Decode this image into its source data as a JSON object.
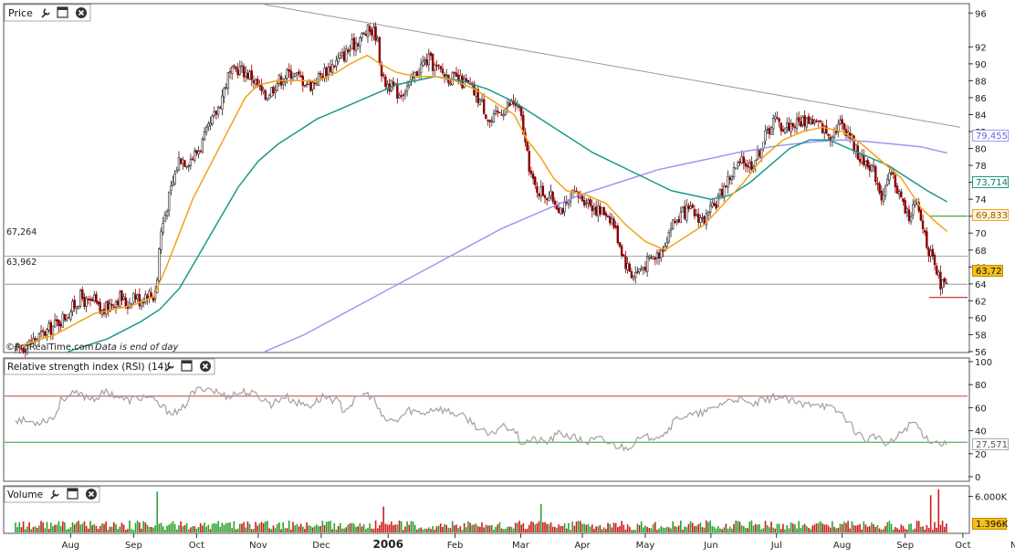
{
  "colors": {
    "up": "#222222",
    "down": "#8b0000",
    "ma_fast": "#f5a21b",
    "ma_mid": "#1a9a8a",
    "ma_slow": "#9c98f0",
    "trend": "#999999",
    "rsi": "#a0a0a0",
    "rsi_upper": "#c04040",
    "rsi_lower": "#2ea02e",
    "vol_up": "#2ea02e",
    "vol_down": "#cc1e1e",
    "level": "#888888",
    "pill_price_bg": "#f6c01a",
    "pill_ma_fast_bg": "#fff4dc"
  },
  "panels": {
    "price": {
      "label": "Price",
      "icons": [
        "wrench-icon",
        "window-icon",
        "close-icon"
      ]
    },
    "rsi": {
      "label": "Relative strength index (RSI) (14)",
      "icons": [
        "wrench-icon",
        "window-icon",
        "close-icon"
      ]
    },
    "volume": {
      "label": "Volume",
      "icons": [
        "wrench-icon",
        "window-icon",
        "close-icon"
      ]
    }
  },
  "watermark": {
    "brand": "©ProRealTime.com",
    "note": "Data is end of day"
  },
  "price_axis": {
    "ticks": [
      "96",
      "92",
      "90",
      "88",
      "86",
      "84",
      "82",
      "80",
      "78",
      "76",
      "74",
      "72",
      "70",
      "68",
      "66",
      "64",
      "62",
      "60",
      "58",
      "56"
    ]
  },
  "rsi_axis": {
    "ticks": [
      "100",
      "80",
      "60",
      "40",
      "20",
      "0"
    ]
  },
  "volume_axis": {
    "ticks": [
      "6.000K"
    ]
  },
  "levels": {
    "left_labels": [
      "67,264",
      "63,962"
    ]
  },
  "pills": {
    "ma_slow": "79,455",
    "ma_mid": "73,714",
    "ma_fast": "69,833",
    "price": "63,72",
    "rsi": "27,571",
    "volume": "1.396K"
  },
  "x_axis": {
    "labels": [
      "Aug",
      "Sep",
      "Oct",
      "Nov",
      "Dec",
      "2006",
      "Feb",
      "Mar",
      "Apr",
      "May",
      "Jun",
      "Jul",
      "Aug",
      "Sep",
      "Oct",
      "Nov"
    ],
    "bold": [
      "2006"
    ]
  },
  "chart_data": {
    "type": "line",
    "price": {
      "ylim": [
        56,
        97
      ],
      "close_path": [
        [
          0,
          56.0
        ],
        [
          10,
          57.0
        ],
        [
          25,
          58.5
        ],
        [
          40,
          60.5
        ],
        [
          50,
          62.5
        ],
        [
          55,
          61.5
        ],
        [
          60,
          62.0
        ],
        [
          65,
          60.5
        ],
        [
          75,
          62.0
        ],
        [
          80,
          62.5
        ],
        [
          85,
          61.5
        ],
        [
          90,
          62.8
        ],
        [
          95,
          62.0
        ],
        [
          100,
          63.0
        ],
        [
          105,
          62.5
        ],
        [
          108,
          64.5
        ],
        [
          110,
          69.5
        ],
        [
          115,
          73.0
        ],
        [
          120,
          76.0
        ],
        [
          125,
          79.0
        ],
        [
          130,
          78.5
        ],
        [
          135,
          79.0
        ],
        [
          140,
          80.0
        ],
        [
          148,
          82.5
        ],
        [
          155,
          85.0
        ],
        [
          162,
          88.5
        ],
        [
          170,
          89.5
        ],
        [
          180,
          88.5
        ],
        [
          190,
          86.0
        ],
        [
          200,
          88.0
        ],
        [
          210,
          89.0
        ],
        [
          220,
          88.0
        ],
        [
          225,
          87.5
        ],
        [
          235,
          89.0
        ],
        [
          250,
          91.0
        ],
        [
          262,
          93.0
        ],
        [
          270,
          94.0
        ],
        [
          275,
          93.5
        ],
        [
          280,
          88.0
        ],
        [
          285,
          87.5
        ],
        [
          292,
          86.5
        ],
        [
          300,
          87.5
        ],
        [
          310,
          90.0
        ],
        [
          315,
          90.5
        ],
        [
          320,
          89.5
        ],
        [
          330,
          88.5
        ],
        [
          345,
          87.5
        ],
        [
          355,
          85.5
        ],
        [
          362,
          83.0
        ],
        [
          370,
          84.5
        ],
        [
          380,
          85.5
        ],
        [
          385,
          84.0
        ],
        [
          390,
          79.0
        ],
        [
          395,
          75.5
        ],
        [
          400,
          75.0
        ],
        [
          410,
          74.0
        ],
        [
          415,
          73.0
        ],
        [
          420,
          73.0
        ],
        [
          425,
          74.5
        ],
        [
          435,
          74.0
        ],
        [
          445,
          72.5
        ],
        [
          450,
          72.5
        ],
        [
          455,
          71.5
        ],
        [
          460,
          69.0
        ],
        [
          465,
          66.5
        ],
        [
          470,
          65.0
        ],
        [
          478,
          66.0
        ],
        [
          485,
          67.0
        ],
        [
          490,
          67.5
        ],
        [
          495,
          69.0
        ],
        [
          500,
          71.0
        ],
        [
          510,
          72.5
        ],
        [
          515,
          72.5
        ],
        [
          525,
          71.5
        ],
        [
          532,
          73.0
        ],
        [
          540,
          75.5
        ],
        [
          548,
          77.5
        ],
        [
          555,
          78.5
        ],
        [
          560,
          78.0
        ],
        [
          565,
          79.0
        ],
        [
          570,
          81.0
        ],
        [
          578,
          83.5
        ],
        [
          585,
          82.5
        ],
        [
          595,
          83.0
        ],
        [
          605,
          83.5
        ],
        [
          610,
          83.0
        ],
        [
          615,
          82.5
        ],
        [
          620,
          81.5
        ],
        [
          628,
          83.0
        ],
        [
          635,
          82.0
        ],
        [
          640,
          80.0
        ],
        [
          645,
          78.5
        ],
        [
          650,
          78.5
        ],
        [
          655,
          77.0
        ],
        [
          660,
          74.5
        ],
        [
          668,
          77.0
        ],
        [
          675,
          74.0
        ],
        [
          680,
          72.0
        ],
        [
          686,
          73.5
        ],
        [
          690,
          71.5
        ],
        [
          693,
          70.0
        ],
        [
          696,
          68.0
        ],
        [
          700,
          66.0
        ],
        [
          705,
          64.0
        ],
        [
          710,
          63.72
        ]
      ],
      "ma_fast_path": [
        [
          0,
          56.5
        ],
        [
          30,
          58.0
        ],
        [
          60,
          60.5
        ],
        [
          90,
          61.5
        ],
        [
          105,
          62.5
        ],
        [
          115,
          66.0
        ],
        [
          125,
          70.0
        ],
        [
          135,
          74.0
        ],
        [
          145,
          77.0
        ],
        [
          155,
          80.0
        ],
        [
          165,
          83.0
        ],
        [
          175,
          86.0
        ],
        [
          185,
          87.5
        ],
        [
          200,
          88.0
        ],
        [
          215,
          88.0
        ],
        [
          230,
          88.0
        ],
        [
          245,
          89.0
        ],
        [
          255,
          90.0
        ],
        [
          268,
          91.0
        ],
        [
          278,
          90.0
        ],
        [
          290,
          89.0
        ],
        [
          305,
          88.5
        ],
        [
          320,
          88.5
        ],
        [
          335,
          88.0
        ],
        [
          350,
          87.0
        ],
        [
          365,
          85.5
        ],
        [
          380,
          84.0
        ],
        [
          390,
          81.0
        ],
        [
          400,
          79.0
        ],
        [
          410,
          76.5
        ],
        [
          420,
          75.0
        ],
        [
          435,
          74.5
        ],
        [
          450,
          73.5
        ],
        [
          465,
          71.0
        ],
        [
          480,
          69.0
        ],
        [
          495,
          68.0
        ],
        [
          510,
          69.5
        ],
        [
          525,
          71.0
        ],
        [
          540,
          73.5
        ],
        [
          555,
          76.0
        ],
        [
          570,
          79.0
        ],
        [
          585,
          81.0
        ],
        [
          600,
          82.0
        ],
        [
          615,
          82.5
        ],
        [
          630,
          82.0
        ],
        [
          645,
          80.5
        ],
        [
          660,
          78.5
        ],
        [
          675,
          76.5
        ],
        [
          690,
          73.0
        ],
        [
          700,
          71.5
        ],
        [
          710,
          70.2
        ]
      ],
      "ma_mid_path": [
        [
          40,
          56.0
        ],
        [
          70,
          57.5
        ],
        [
          95,
          59.5
        ],
        [
          110,
          61.0
        ],
        [
          125,
          63.5
        ],
        [
          140,
          67.5
        ],
        [
          155,
          71.5
        ],
        [
          170,
          75.5
        ],
        [
          185,
          78.5
        ],
        [
          200,
          80.5
        ],
        [
          215,
          82.0
        ],
        [
          230,
          83.5
        ],
        [
          245,
          84.5
        ],
        [
          260,
          85.5
        ],
        [
          275,
          86.5
        ],
        [
          290,
          87.5
        ],
        [
          305,
          88.0
        ],
        [
          320,
          88.5
        ],
        [
          340,
          88.0
        ],
        [
          360,
          87.0
        ],
        [
          380,
          85.5
        ],
        [
          400,
          83.5
        ],
        [
          420,
          81.5
        ],
        [
          440,
          79.5
        ],
        [
          460,
          78.0
        ],
        [
          480,
          76.5
        ],
        [
          500,
          75.0
        ],
        [
          515,
          74.5
        ],
        [
          530,
          74.0
        ],
        [
          545,
          74.5
        ],
        [
          560,
          76.0
        ],
        [
          575,
          78.0
        ],
        [
          590,
          80.0
        ],
        [
          605,
          81.0
        ],
        [
          620,
          81.0
        ],
        [
          635,
          80.0
        ],
        [
          650,
          79.0
        ],
        [
          665,
          78.0
        ],
        [
          680,
          76.5
        ],
        [
          695,
          75.0
        ],
        [
          710,
          73.7
        ]
      ],
      "ma_slow_path": [
        [
          190,
          56.0
        ],
        [
          220,
          58.0
        ],
        [
          250,
          60.5
        ],
        [
          280,
          63.0
        ],
        [
          310,
          65.5
        ],
        [
          340,
          68.0
        ],
        [
          370,
          70.5
        ],
        [
          400,
          72.5
        ],
        [
          430,
          74.5
        ],
        [
          460,
          76.0
        ],
        [
          490,
          77.5
        ],
        [
          520,
          78.5
        ],
        [
          550,
          79.5
        ],
        [
          580,
          80.3
        ],
        [
          610,
          80.8
        ],
        [
          630,
          81.0
        ],
        [
          650,
          80.8
        ],
        [
          670,
          80.5
        ],
        [
          690,
          80.2
        ],
        [
          710,
          79.455
        ]
      ],
      "trend_line": [
        [
          190,
          97.0
        ],
        [
          720,
          82.5
        ]
      ],
      "levels": [
        67.264,
        63.962
      ],
      "side_markers": [
        {
          "y": 72.0,
          "color": "green"
        },
        {
          "y": 62.4,
          "color": "red"
        }
      ],
      "last": {
        "ma_slow": 79.455,
        "ma_mid": 73.714,
        "ma_fast": 69.833,
        "price": 63.72
      }
    },
    "rsi": {
      "ylim": [
        0,
        100
      ],
      "upper": 70,
      "lower": 30,
      "path": [
        [
          0,
          50
        ],
        [
          15,
          47
        ],
        [
          30,
          52
        ],
        [
          35,
          68
        ],
        [
          45,
          72
        ],
        [
          60,
          68
        ],
        [
          70,
          74
        ],
        [
          85,
          66
        ],
        [
          100,
          70
        ],
        [
          115,
          58
        ],
        [
          125,
          55
        ],
        [
          135,
          73
        ],
        [
          145,
          78
        ],
        [
          160,
          70
        ],
        [
          175,
          74
        ],
        [
          185,
          70
        ],
        [
          195,
          63
        ],
        [
          205,
          70
        ],
        [
          215,
          64
        ],
        [
          225,
          62
        ],
        [
          235,
          70
        ],
        [
          245,
          66
        ],
        [
          250,
          58
        ],
        [
          258,
          65
        ],
        [
          265,
          72
        ],
        [
          272,
          70
        ],
        [
          280,
          50
        ],
        [
          290,
          48
        ],
        [
          300,
          58
        ],
        [
          310,
          55
        ],
        [
          320,
          60
        ],
        [
          335,
          55
        ],
        [
          345,
          50
        ],
        [
          355,
          40
        ],
        [
          362,
          35
        ],
        [
          370,
          45
        ],
        [
          380,
          42
        ],
        [
          385,
          30
        ],
        [
          395,
          32
        ],
        [
          405,
          30
        ],
        [
          415,
          38
        ],
        [
          425,
          34
        ],
        [
          435,
          30
        ],
        [
          445,
          33
        ],
        [
          455,
          28
        ],
        [
          465,
          25
        ],
        [
          475,
          32
        ],
        [
          485,
          35
        ],
        [
          495,
          38
        ],
        [
          505,
          52
        ],
        [
          520,
          54
        ],
        [
          530,
          58
        ],
        [
          540,
          65
        ],
        [
          550,
          68
        ],
        [
          560,
          62
        ],
        [
          570,
          66
        ],
        [
          580,
          70
        ],
        [
          590,
          66
        ],
        [
          600,
          62
        ],
        [
          610,
          65
        ],
        [
          620,
          60
        ],
        [
          630,
          55
        ],
        [
          640,
          40
        ],
        [
          648,
          32
        ],
        [
          655,
          36
        ],
        [
          660,
          30
        ],
        [
          665,
          28
        ],
        [
          670,
          32
        ],
        [
          678,
          42
        ],
        [
          685,
          48
        ],
        [
          690,
          40
        ],
        [
          695,
          33
        ],
        [
          705,
          29
        ],
        [
          710,
          27.571
        ]
      ],
      "last": 27.571
    },
    "volume": {
      "max": 7.0,
      "tick": 6.0,
      "spikes": [
        {
          "x": 108,
          "v": 6.8
        },
        {
          "x": 280,
          "v": 4.3
        },
        {
          "x": 400,
          "v": 4.7
        },
        {
          "x": 698,
          "v": 6.2
        },
        {
          "x": 704,
          "v": 7.2
        }
      ],
      "last": 1.396
    },
    "x_axis_positions": [
      42,
      90,
      138,
      185,
      233,
      284,
      335,
      385,
      432,
      480,
      530,
      580,
      630,
      678,
      722,
      765
    ]
  }
}
